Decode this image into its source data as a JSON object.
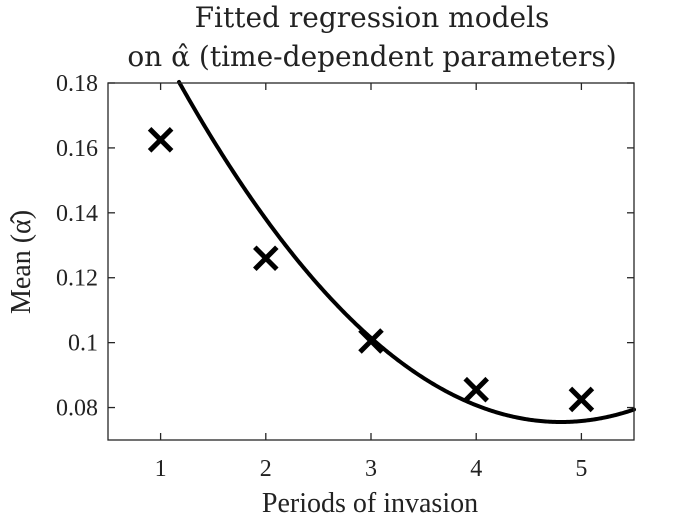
{
  "chart_data": {
    "type": "line",
    "title": [
      "Fitted regression models",
      "on α̂ (time-dependent parameters)"
    ],
    "xlabel": "Periods of invasion",
    "ylabel": "Mean (α̂)",
    "xlim": [
      0.5,
      5.5
    ],
    "ylim": [
      0.07,
      0.18
    ],
    "xticks": [
      1,
      2,
      3,
      4,
      5
    ],
    "xtick_labels": [
      "1",
      "2",
      "3",
      "4",
      "5"
    ],
    "yticks": [
      0.08,
      0.1,
      0.12,
      0.14,
      0.16,
      0.18
    ],
    "ytick_labels": [
      "0.08",
      "0.1",
      "0.12",
      "0.14",
      "0.16",
      "0.18"
    ],
    "grid": false,
    "series": [
      {
        "type": "scatter",
        "marker": "x",
        "x": [
          1,
          2,
          3,
          4,
          5
        ],
        "values": [
          0.1625,
          0.126,
          0.1005,
          0.0855,
          0.0825
        ]
      },
      {
        "type": "line",
        "fit": "quadratic",
        "coefficients": [
          0.00795,
          -0.0764,
          0.2591
        ]
      }
    ],
    "colors": {
      "line": "#000000",
      "axes": "#262626",
      "text": "#222222"
    }
  }
}
